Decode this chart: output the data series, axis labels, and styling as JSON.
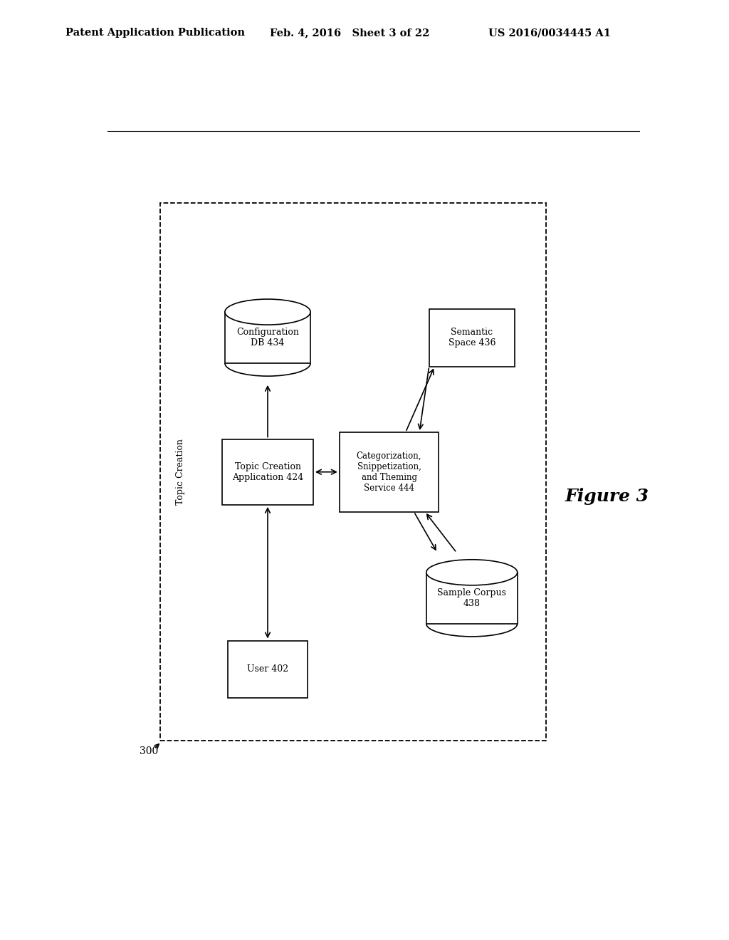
{
  "header_left": "Patent Application Publication",
  "header_mid": "Feb. 4, 2016   Sheet 3 of 22",
  "header_right": "US 2016/0034445 A1",
  "figure_label": "Figure 3",
  "diagram_label": "300",
  "outer_box_label": "Topic Creation",
  "background_color": "#ffffff"
}
